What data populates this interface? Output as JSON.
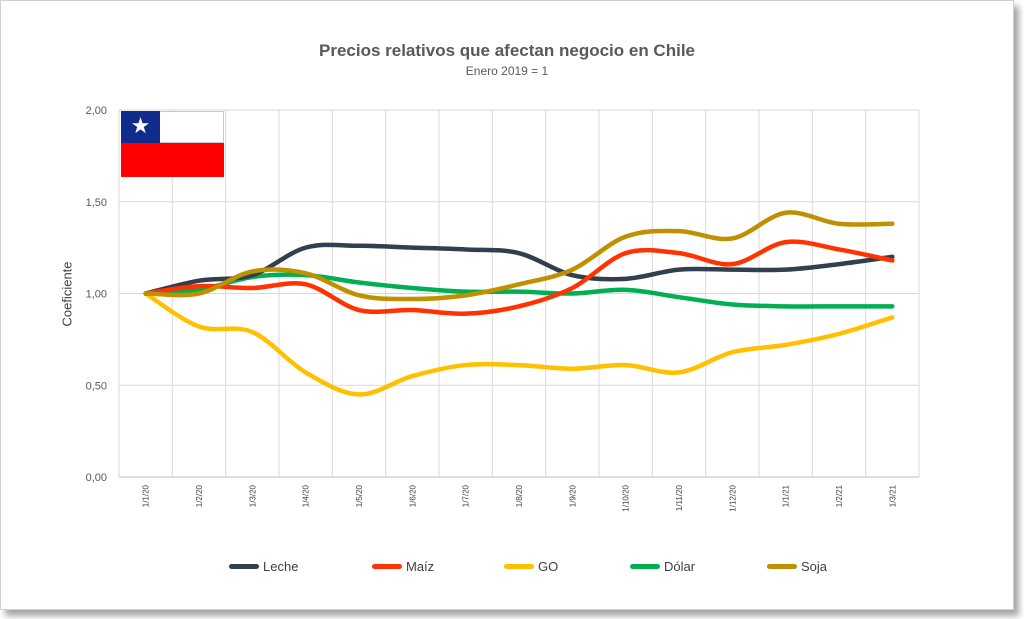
{
  "chart_data": {
    "type": "line",
    "title": "Precios relativos que afectan negocio en Chile",
    "subtitle": "Enero 2019 = 1",
    "xlabel": "",
    "ylabel": "Coeficiente",
    "ylim": [
      0,
      2
    ],
    "y_ticks": [
      "0,00",
      "0,50",
      "1,00",
      "1,50",
      "2,00"
    ],
    "y_tick_values": [
      0,
      0.5,
      1,
      1.5,
      2
    ],
    "categories": [
      "1/1/20",
      "1/2/20",
      "1/3/20",
      "1/4/20",
      "1/5/20",
      "1/6/20",
      "1/7/20",
      "1/8/20",
      "1/9/20",
      "1/10/20",
      "1/11/20",
      "1/12/20",
      "1/1/21",
      "1/2/21",
      "1/3/21"
    ],
    "grid": true,
    "legend_position": "bottom",
    "series": [
      {
        "name": "Leche",
        "color": "#323f4f",
        "values": [
          1.0,
          1.07,
          1.1,
          1.25,
          1.26,
          1.25,
          1.24,
          1.22,
          1.1,
          1.08,
          1.13,
          1.13,
          1.13,
          1.16,
          1.2
        ]
      },
      {
        "name": "Maíz",
        "color": "#ff3300",
        "values": [
          1.0,
          1.04,
          1.03,
          1.05,
          0.91,
          0.91,
          0.89,
          0.93,
          1.03,
          1.22,
          1.22,
          1.16,
          1.28,
          1.24,
          1.18
        ]
      },
      {
        "name": "GO",
        "color": "#ffc000",
        "values": [
          1.0,
          0.82,
          0.79,
          0.57,
          0.45,
          0.55,
          0.61,
          0.61,
          0.59,
          0.61,
          0.57,
          0.68,
          0.72,
          0.78,
          0.87
        ]
      },
      {
        "name": "Dólar",
        "color": "#00b050",
        "values": [
          1.0,
          1.02,
          1.09,
          1.1,
          1.06,
          1.03,
          1.01,
          1.01,
          1.0,
          1.02,
          0.98,
          0.94,
          0.93,
          0.93,
          0.93
        ]
      },
      {
        "name": "Soja",
        "color": "#bf9000",
        "values": [
          1.0,
          1.0,
          1.12,
          1.11,
          0.99,
          0.97,
          0.99,
          1.05,
          1.13,
          1.31,
          1.34,
          1.3,
          1.44,
          1.38,
          1.38
        ]
      }
    ]
  },
  "flag": {
    "name": "chile-flag",
    "star": "★",
    "colors": [
      "#0f2c8c",
      "#ffffff",
      "#ff0000"
    ]
  }
}
